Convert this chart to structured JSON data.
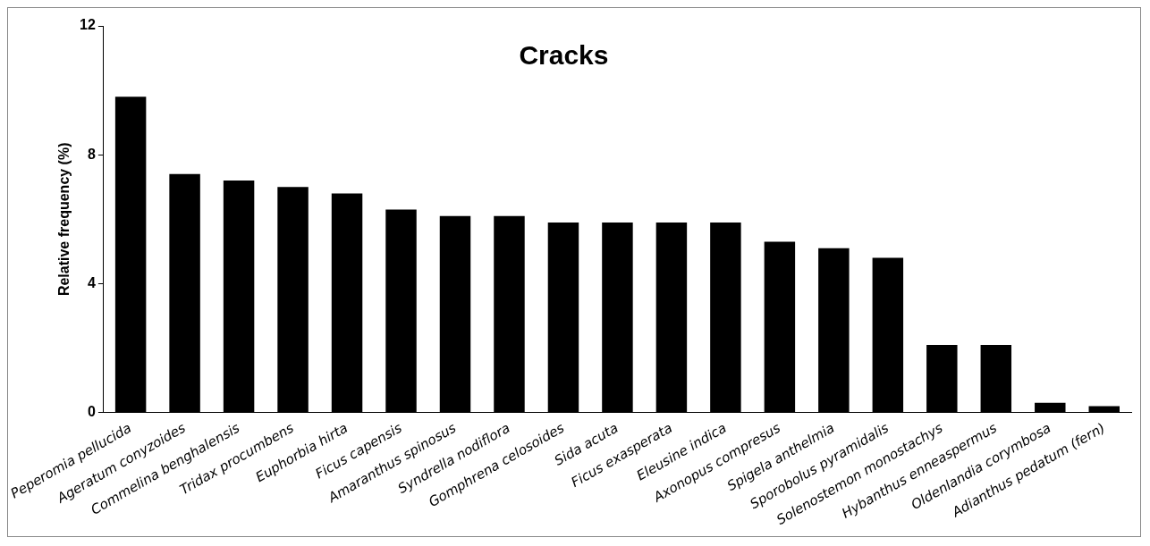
{
  "chart_data": {
    "type": "bar",
    "title": "Cracks",
    "ylabel": "Relative frequency (%)",
    "categories": [
      "Peperomia pellucida",
      "Ageratum conyzoides",
      "Commelina benghalensis",
      "Tridax procumbens",
      "Euphorbia hirta",
      "Ficus capensis",
      "Amaranthus spinosus",
      "Syndrella nodiflora",
      "Gomphrena celosoides",
      "Sida acuta",
      "Ficus exasperata",
      "Eleusine indica",
      "Axonopus compresus",
      "Spigela anthelmia",
      "Sporobolus pyramidalis",
      "Solenostemon monostachys",
      "Hybanthus enneaspermus",
      "Oldenlandia corymbosa",
      "Adianthus pedatum (fern)"
    ],
    "values": [
      9.8,
      7.4,
      7.2,
      7.0,
      6.8,
      6.3,
      6.1,
      6.1,
      5.9,
      5.9,
      5.9,
      5.9,
      5.3,
      5.1,
      4.8,
      2.1,
      2.1,
      0.3,
      0.2
    ],
    "color": "#000000",
    "ylim": [
      0,
      12
    ],
    "yticks": [
      0,
      4,
      8,
      12
    ],
    "grid": false,
    "legend": false
  }
}
